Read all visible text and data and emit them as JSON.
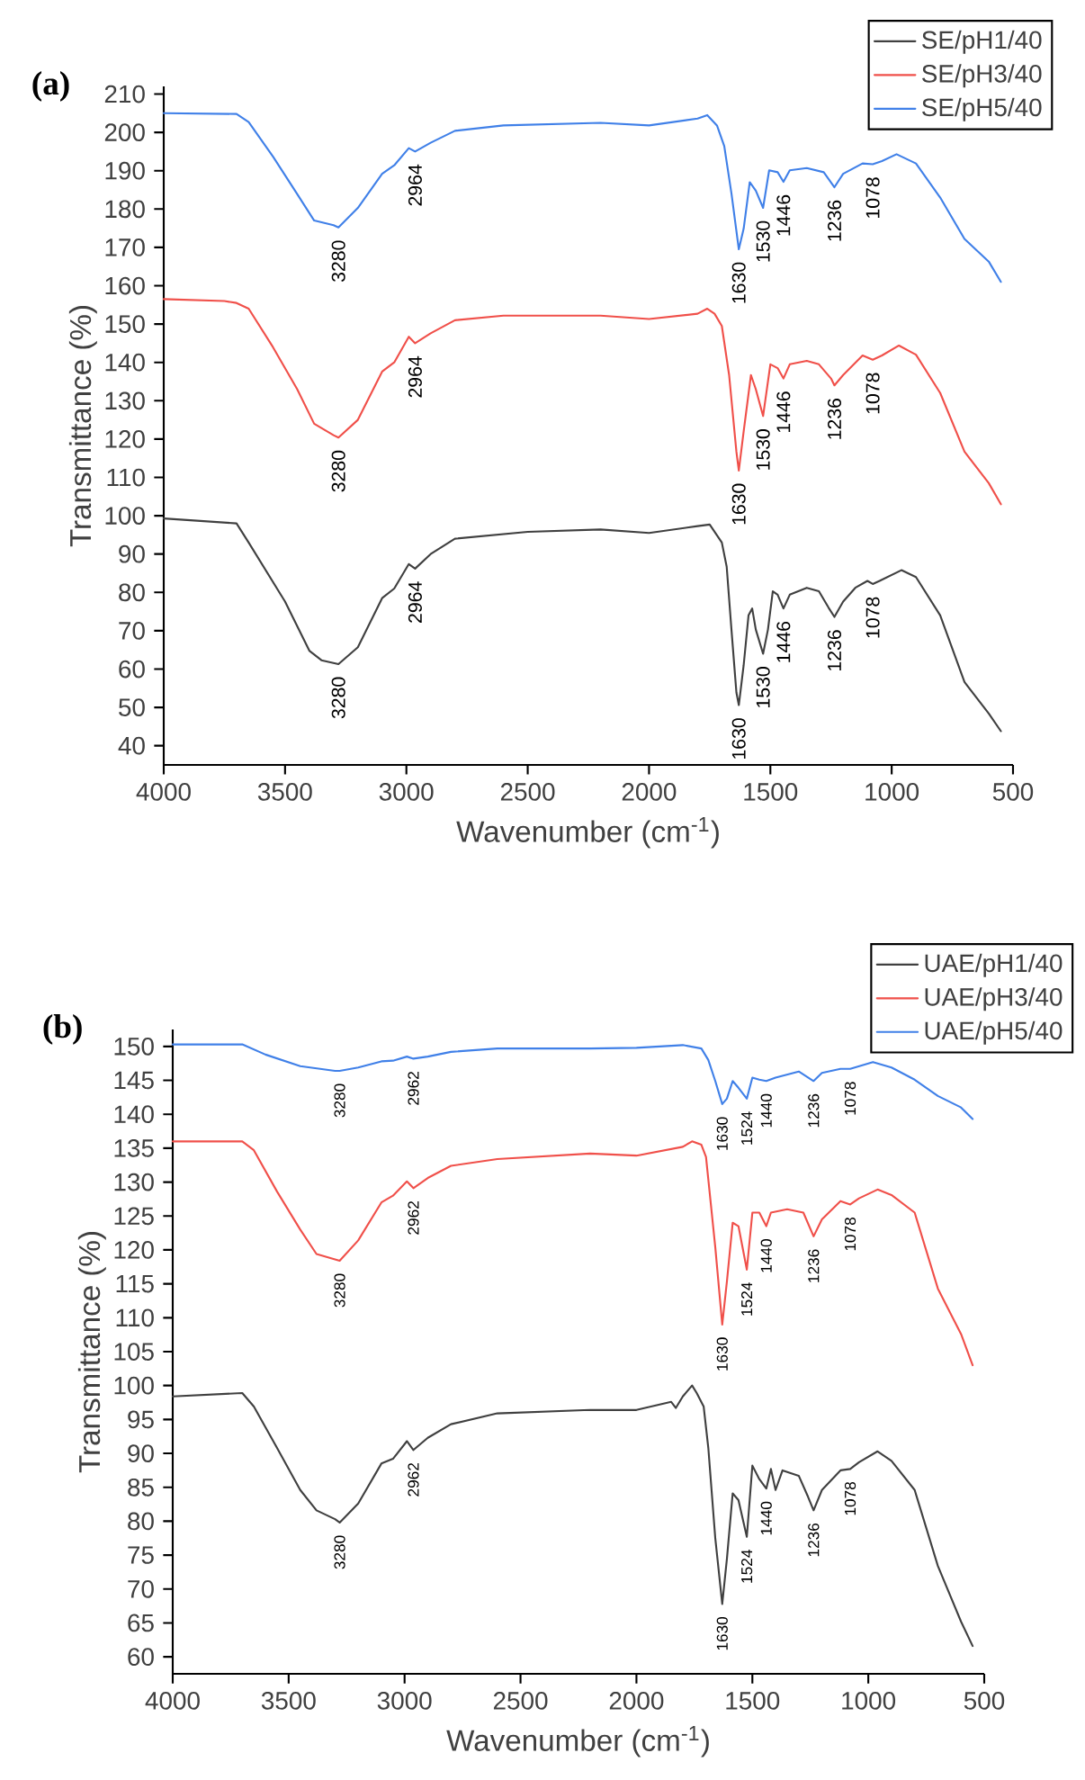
{
  "chart_data": [
    {
      "type": "line",
      "title": "(a)",
      "xlabel": "Wavenumber (cm$^{-1}$)",
      "ylabel": "Transmittance (%)",
      "xlim": [
        4000,
        500
      ],
      "ylim": [
        35,
        212
      ],
      "xticks": [
        4000,
        3500,
        3000,
        2500,
        2000,
        1500,
        1000,
        500
      ],
      "yticks": [
        40,
        50,
        60,
        70,
        80,
        90,
        100,
        110,
        120,
        130,
        140,
        150,
        160,
        170,
        180,
        190,
        200,
        210
      ],
      "legend": "top right",
      "series": [
        {
          "name": "SE/pH1/40",
          "color": "#404040",
          "x": [
            4000,
            3700,
            3650,
            3500,
            3400,
            3350,
            3280,
            3200,
            3100,
            3050,
            2990,
            2964,
            2900,
            2800,
            2500,
            2200,
            2000,
            1800,
            1750,
            1700,
            1680,
            1660,
            1640,
            1630,
            1610,
            1590,
            1575,
            1560,
            1530,
            1510,
            1490,
            1470,
            1446,
            1420,
            1350,
            1300,
            1260,
            1236,
            1200,
            1150,
            1100,
            1078,
            1050,
            960,
            900,
            800,
            700,
            600,
            550
          ],
          "values": [
            99.3,
            98,
            93,
            77.6,
            64.8,
            62.3,
            61.3,
            65.7,
            78.5,
            81,
            87.4,
            86.2,
            90,
            94,
            95.8,
            96.4,
            95.5,
            97.3,
            97.7,
            93,
            86.7,
            70,
            53.9,
            50.6,
            61,
            74,
            75.8,
            70.3,
            64,
            70.3,
            80.3,
            79.4,
            75.8,
            79.4,
            81.2,
            80.3,
            76,
            73.6,
            77.6,
            81.2,
            83,
            82.2,
            83,
            85.8,
            84,
            74,
            56.6,
            48.4,
            43.8
          ]
        },
        {
          "name": "SE/pH3/40",
          "color": "#f0504a",
          "x": [
            4000,
            3750,
            3700,
            3650,
            3550,
            3450,
            3380,
            3300,
            3280,
            3200,
            3100,
            3050,
            2990,
            2964,
            2900,
            2800,
            2600,
            2200,
            2000,
            1800,
            1760,
            1730,
            1700,
            1670,
            1640,
            1630,
            1610,
            1580,
            1560,
            1530,
            1500,
            1470,
            1446,
            1420,
            1350,
            1300,
            1250,
            1236,
            1200,
            1120,
            1078,
            1040,
            970,
            900,
            800,
            700,
            600,
            550
          ],
          "values": [
            156.5,
            156,
            155.5,
            154,
            144,
            133,
            124,
            121,
            120.4,
            125,
            137.6,
            140,
            146.7,
            145,
            147.6,
            151,
            152.2,
            152.2,
            151.3,
            152.7,
            154,
            152.7,
            149.5,
            136.7,
            116.7,
            111.8,
            122,
            136.7,
            133,
            126,
            139.5,
            138.5,
            135.8,
            139.5,
            140.4,
            139.5,
            135.8,
            134,
            136.7,
            141.8,
            140.7,
            141.8,
            144.4,
            142,
            132,
            116.7,
            108.5,
            103
          ]
        },
        {
          "name": "SE/pH5/40",
          "color": "#4080e8",
          "x": [
            4000,
            3700,
            3650,
            3550,
            3450,
            3380,
            3300,
            3280,
            3200,
            3100,
            3050,
            2990,
            2964,
            2900,
            2800,
            2600,
            2200,
            2000,
            1800,
            1760,
            1720,
            1690,
            1660,
            1630,
            1610,
            1585,
            1560,
            1530,
            1505,
            1470,
            1446,
            1420,
            1350,
            1280,
            1236,
            1200,
            1120,
            1078,
            1040,
            980,
            900,
            800,
            700,
            600,
            550
          ],
          "values": [
            205,
            204.8,
            202.7,
            193.7,
            183.9,
            177,
            175.8,
            175.2,
            180.3,
            189.2,
            191.4,
            195.9,
            195,
            197.3,
            200.4,
            201.8,
            202.5,
            201.8,
            203.6,
            204.5,
            201.8,
            196.4,
            183.9,
            169.5,
            174.9,
            187,
            184.8,
            180.3,
            190.1,
            189.6,
            187.1,
            190.1,
            190.7,
            189.6,
            185.7,
            189.2,
            191.9,
            191.7,
            192.5,
            194.3,
            191.9,
            183,
            172.2,
            166.3,
            161
          ]
        }
      ],
      "annotations": [
        {
          "text": "3280",
          "x": 3280,
          "y": 61.3
        },
        {
          "text": "2964",
          "x": 2964,
          "y": 86.2
        },
        {
          "text": "1630",
          "x": 1630,
          "y": 50.6
        },
        {
          "text": "1530",
          "x": 1530,
          "y": 64
        },
        {
          "text": "1446",
          "x": 1446,
          "y": 75.8
        },
        {
          "text": "1236",
          "x": 1236,
          "y": 73.6
        },
        {
          "text": "1078",
          "x": 1078,
          "y": 82.2
        },
        {
          "text": "3280",
          "x": 3280,
          "y": 120.4
        },
        {
          "text": "2964",
          "x": 2964,
          "y": 145
        },
        {
          "text": "1630",
          "x": 1630,
          "y": 111.8
        },
        {
          "text": "1530",
          "x": 1530,
          "y": 126
        },
        {
          "text": "1446",
          "x": 1446,
          "y": 135.8
        },
        {
          "text": "1236",
          "x": 1236,
          "y": 134
        },
        {
          "text": "1078",
          "x": 1078,
          "y": 140.7
        },
        {
          "text": "3280",
          "x": 3280,
          "y": 175.2
        },
        {
          "text": "2964",
          "x": 2964,
          "y": 195
        },
        {
          "text": "1630",
          "x": 1630,
          "y": 169.5
        },
        {
          "text": "1530",
          "x": 1530,
          "y": 180.3
        },
        {
          "text": "1446",
          "x": 1446,
          "y": 187.1
        },
        {
          "text": "1236",
          "x": 1236,
          "y": 185.7
        },
        {
          "text": "1078",
          "x": 1078,
          "y": 191.7
        }
      ]
    },
    {
      "type": "line",
      "title": "(b)",
      "xlabel": "Wavenumber (cm$^{-1}$)",
      "ylabel": "Transmittance (%)",
      "xlim": [
        4000,
        500
      ],
      "ylim": [
        57.5,
        152.5
      ],
      "xticks": [
        4000,
        3500,
        3000,
        2500,
        2000,
        1500,
        1000,
        500
      ],
      "yticks": [
        60,
        65,
        70,
        75,
        80,
        85,
        90,
        95,
        100,
        105,
        110,
        115,
        120,
        125,
        130,
        135,
        140,
        145,
        150
      ],
      "legend": "top right",
      "series": [
        {
          "name": "UAE/pH1/40",
          "color": "#404040",
          "x": [
            4000,
            3700,
            3650,
            3550,
            3450,
            3380,
            3300,
            3280,
            3200,
            3100,
            3050,
            2990,
            2962,
            2900,
            2800,
            2600,
            2200,
            2000,
            1850,
            1830,
            1800,
            1760,
            1740,
            1710,
            1690,
            1660,
            1630,
            1610,
            1585,
            1560,
            1524,
            1500,
            1470,
            1440,
            1420,
            1400,
            1370,
            1300,
            1260,
            1236,
            1200,
            1120,
            1078,
            1040,
            960,
            900,
            800,
            700,
            600,
            550
          ],
          "values": [
            98.4,
            98.9,
            96.9,
            90.8,
            84.6,
            81.6,
            80.3,
            79.8,
            82.6,
            88.5,
            89.2,
            91.8,
            90.5,
            92.3,
            94.3,
            95.9,
            96.4,
            96.4,
            97.6,
            96.7,
            98.4,
            100,
            98.9,
            96.9,
            90.8,
            77.5,
            67.8,
            74.4,
            84.1,
            83.1,
            77.7,
            88.2,
            86.2,
            84.8,
            87.7,
            84.6,
            87.5,
            86.7,
            83.6,
            81.6,
            84.6,
            87.5,
            87.7,
            88.7,
            90.3,
            88.9,
            84.6,
            73.4,
            65.2,
            61.6
          ]
        },
        {
          "name": "UAE/pH3/40",
          "color": "#f0504a",
          "x": [
            4000,
            3700,
            3650,
            3550,
            3450,
            3380,
            3300,
            3280,
            3200,
            3100,
            3050,
            2990,
            2962,
            2900,
            2800,
            2600,
            2200,
            2000,
            1800,
            1760,
            1720,
            1700,
            1660,
            1630,
            1610,
            1585,
            1560,
            1524,
            1500,
            1470,
            1440,
            1420,
            1350,
            1280,
            1236,
            1200,
            1120,
            1078,
            1040,
            960,
            900,
            800,
            700,
            600,
            550
          ],
          "values": [
            136,
            136,
            134.7,
            128.6,
            123,
            119.4,
            118.6,
            118.4,
            121.4,
            127,
            128,
            130.1,
            129.1,
            130.6,
            132.4,
            133.4,
            134.2,
            133.9,
            135.2,
            136,
            135.5,
            133.7,
            120.4,
            109,
            115.3,
            124,
            123.5,
            117.1,
            125.5,
            125.5,
            123.5,
            125.5,
            126,
            125.5,
            122,
            124.5,
            127.2,
            126.7,
            127.6,
            128.9,
            128.1,
            125.5,
            114.3,
            107.6,
            103
          ]
        },
        {
          "name": "UAE/pH5/40",
          "color": "#4080e8",
          "x": [
            4000,
            3700,
            3600,
            3450,
            3300,
            3280,
            3200,
            3100,
            3050,
            2990,
            2962,
            2900,
            2800,
            2600,
            2200,
            2000,
            1800,
            1720,
            1690,
            1660,
            1630,
            1610,
            1585,
            1560,
            1524,
            1500,
            1470,
            1440,
            1400,
            1300,
            1236,
            1200,
            1120,
            1078,
            980,
            900,
            800,
            700,
            600,
            550
          ],
          "values": [
            150.3,
            150.3,
            148.8,
            147.1,
            146.4,
            146.4,
            146.9,
            147.8,
            147.9,
            148.5,
            148.2,
            148.5,
            149.2,
            149.7,
            149.7,
            149.8,
            150.2,
            149.7,
            148,
            144.9,
            141.5,
            142.3,
            144.9,
            143.9,
            142.3,
            145.4,
            145.1,
            144.9,
            145.4,
            146.3,
            144.9,
            146.1,
            146.7,
            146.7,
            147.7,
            146.9,
            145.1,
            142.7,
            141,
            139.3
          ]
        }
      ],
      "annotations": [
        {
          "text": "3280",
          "x": 3280,
          "y": 79.8
        },
        {
          "text": "2962",
          "x": 2962,
          "y": 90.5
        },
        {
          "text": "1630",
          "x": 1630,
          "y": 67.8
        },
        {
          "text": "1524",
          "x": 1524,
          "y": 77.7
        },
        {
          "text": "1440",
          "x": 1440,
          "y": 84.8
        },
        {
          "text": "1236",
          "x": 1236,
          "y": 81.6
        },
        {
          "text": "1078",
          "x": 1078,
          "y": 87.7
        },
        {
          "text": "3280",
          "x": 3280,
          "y": 118.4
        },
        {
          "text": "2962",
          "x": 2962,
          "y": 129.1
        },
        {
          "text": "1630",
          "x": 1630,
          "y": 109
        },
        {
          "text": "1524",
          "x": 1524,
          "y": 117.1
        },
        {
          "text": "1440",
          "x": 1440,
          "y": 123.5
        },
        {
          "text": "1236",
          "x": 1236,
          "y": 122
        },
        {
          "text": "1078",
          "x": 1078,
          "y": 126.7
        },
        {
          "text": "3280",
          "x": 3280,
          "y": 146.4
        },
        {
          "text": "2962",
          "x": 2962,
          "y": 148.2
        },
        {
          "text": "1630",
          "x": 1630,
          "y": 141.5
        },
        {
          "text": "1524",
          "x": 1524,
          "y": 142.3
        },
        {
          "text": "1440",
          "x": 1440,
          "y": 144.9
        },
        {
          "text": "1236",
          "x": 1236,
          "y": 144.9
        },
        {
          "text": "1078",
          "x": 1078,
          "y": 146.7
        }
      ]
    }
  ]
}
